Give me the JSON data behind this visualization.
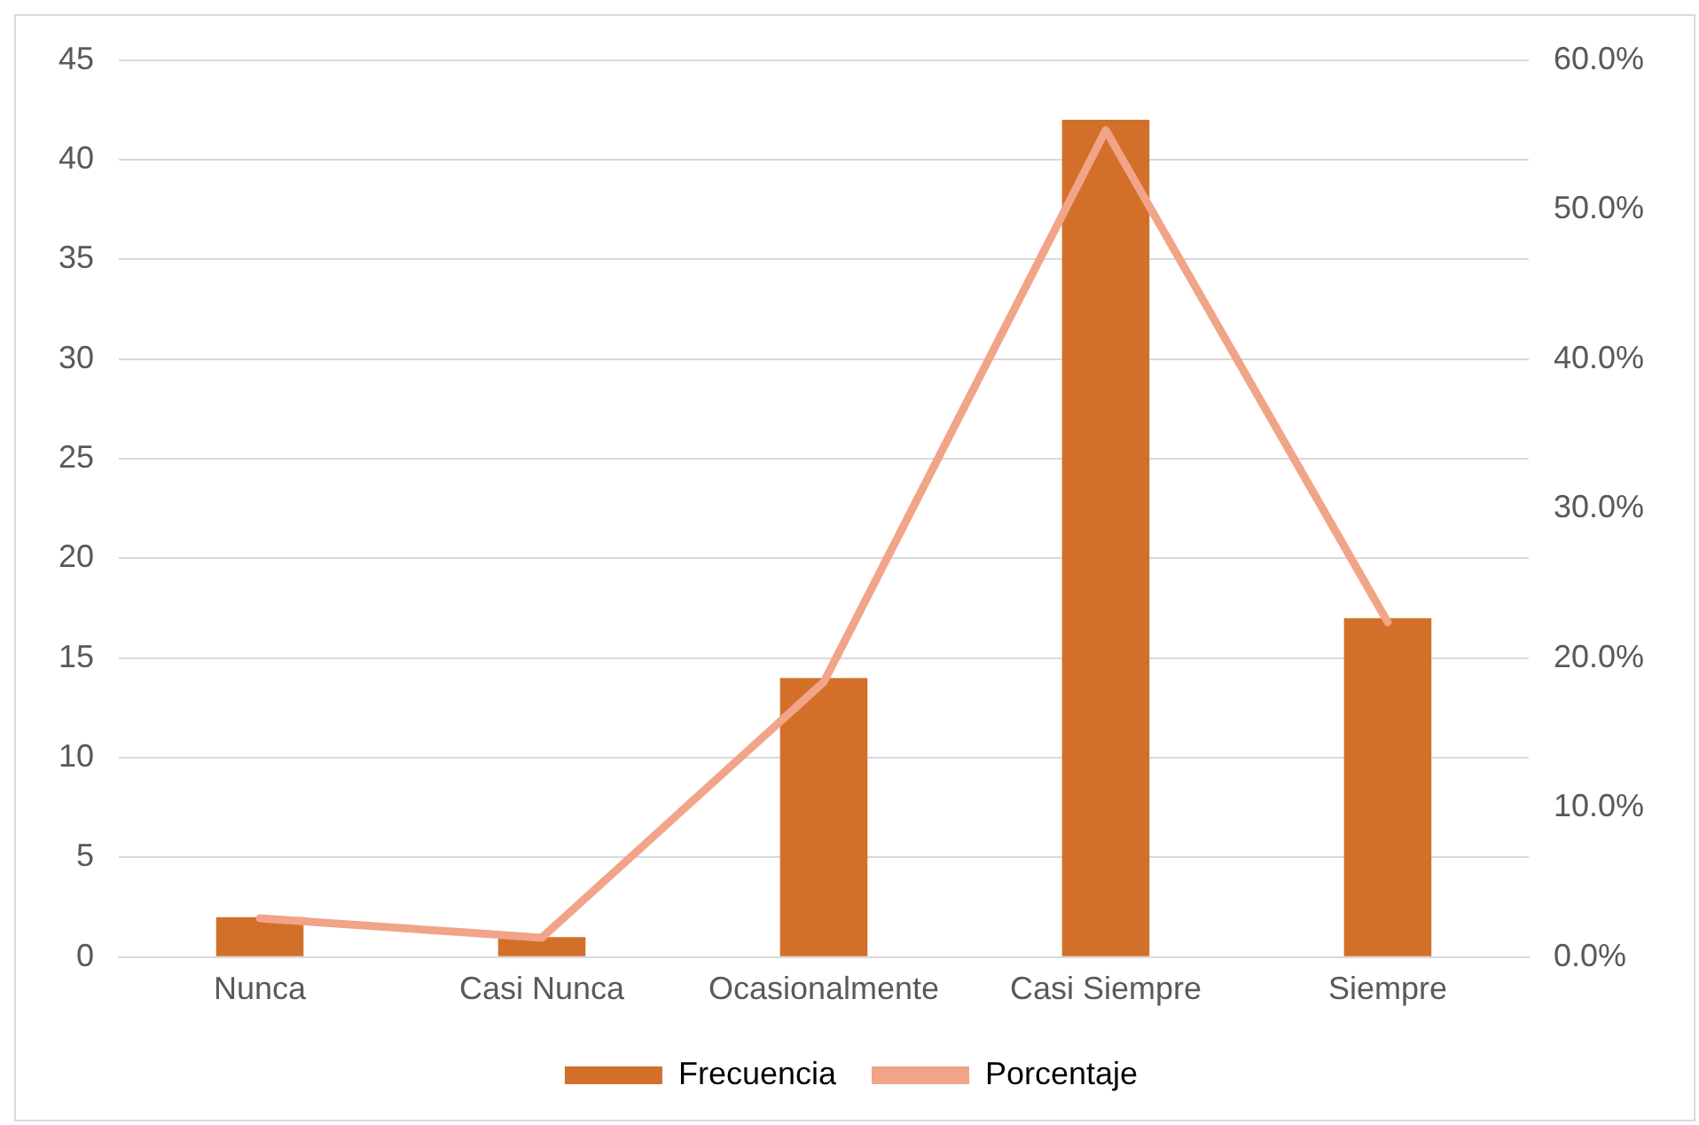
{
  "chart_data": {
    "type": "bar",
    "categories": [
      "Nunca",
      "Casi Nunca",
      "Ocasionalmente",
      "Casi Siempre",
      "Siempre"
    ],
    "series": [
      {
        "name": "Frecuencia",
        "color": "#d2702a",
        "values": [
          2,
          1,
          14,
          42,
          17
        ]
      },
      {
        "name": "Porcentaje",
        "type": "line",
        "axis": "y2",
        "color": "#f1a487",
        "values": [
          2.6,
          1.3,
          18.4,
          55.3,
          22.4
        ]
      }
    ],
    "ylim": [
      0,
      45
    ],
    "yticks": [
      0,
      5,
      10,
      15,
      20,
      25,
      30,
      35,
      40,
      45
    ],
    "y2lim": [
      0,
      60
    ],
    "y2ticks": [
      {
        "value": 0,
        "label": "0.0%"
      },
      {
        "value": 10,
        "label": "10.0%"
      },
      {
        "value": 20,
        "label": "20.0%"
      },
      {
        "value": 30,
        "label": "30.0%"
      },
      {
        "value": 40,
        "label": "40.0%"
      },
      {
        "value": 50,
        "label": "50.0%"
      },
      {
        "value": 60,
        "label": "60.0%"
      }
    ],
    "grid": "y",
    "legend": "bottom",
    "marker": "none"
  }
}
